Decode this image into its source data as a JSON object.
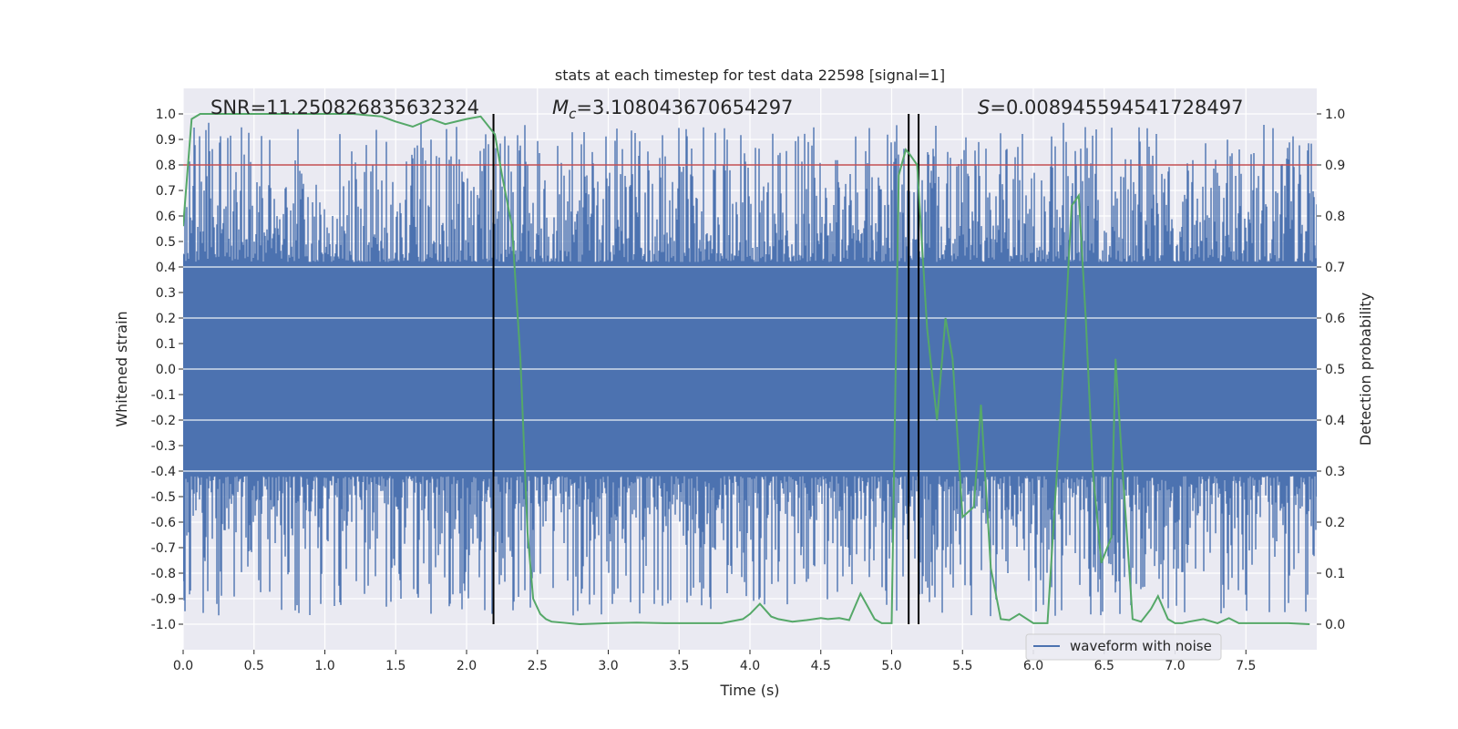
{
  "chart_data": {
    "type": "line",
    "title": "stats at each timestep for test data 22598 [signal=1]",
    "xlabel": "Time (s)",
    "ylabel_left": "Whitened strain",
    "ylabel_right": "Detection probability",
    "xlim": [
      0,
      8
    ],
    "ylim_left": [
      -1.1,
      1.1
    ],
    "ylim_right": [
      -0.05,
      1.05
    ],
    "x_ticks": [
      "0.0",
      "0.5",
      "1.0",
      "1.5",
      "2.0",
      "2.5",
      "3.0",
      "3.5",
      "4.0",
      "4.5",
      "5.0",
      "5.5",
      "6.0",
      "6.5",
      "7.0",
      "7.5"
    ],
    "y_left_ticks": [
      "1.0",
      "0.9",
      "0.8",
      "0.7",
      "0.6",
      "0.5",
      "0.4",
      "0.3",
      "0.2",
      "0.1",
      "0.0",
      "-0.1",
      "-0.2",
      "-0.3",
      "-0.4",
      "-0.5",
      "-0.6",
      "-0.7",
      "-0.8",
      "-0.9",
      "-1.0"
    ],
    "y_right_ticks": [
      "1.0",
      "0.9",
      "0.8",
      "0.7",
      "0.6",
      "0.5",
      "0.4",
      "0.3",
      "0.2",
      "0.1",
      "0.0"
    ],
    "grid": true,
    "annotations": {
      "snr": "SNR=11.250826835632324",
      "mc_symbol": "M",
      "mc_sub": "c",
      "mc_value": "=3.108043670654297",
      "s_symbol": "S",
      "s_value": "=0.008945594541728497"
    },
    "threshold": {
      "y": 0.8,
      "color": "#c44e52"
    },
    "vertical_lines": [
      2.19,
      5.12,
      5.19
    ],
    "legend": {
      "label": "waveform with noise",
      "placement": "lower-right"
    },
    "waveform": {
      "name": "waveform with noise",
      "color": "#4c72b0",
      "core_amplitude": 0.42,
      "max_abs": 1.0
    },
    "series": [
      {
        "color": "#55a868",
        "x": [
          0.0,
          0.06,
          0.12,
          0.3,
          0.6,
          0.9,
          1.2,
          1.4,
          1.5,
          1.62,
          1.75,
          1.85,
          2.0,
          2.1,
          2.2,
          2.25,
          2.32,
          2.38,
          2.43,
          2.47,
          2.52,
          2.56,
          2.6,
          2.8,
          3.0,
          3.2,
          3.4,
          3.6,
          3.8,
          3.95,
          4.0,
          4.07,
          4.15,
          4.2,
          4.3,
          4.4,
          4.5,
          4.55,
          4.63,
          4.7,
          4.78,
          4.83,
          4.88,
          4.93,
          5.0,
          5.05,
          5.1,
          5.13,
          5.18,
          5.25,
          5.32,
          5.38,
          5.43,
          5.5,
          5.58,
          5.63,
          5.7,
          5.77,
          5.83,
          5.9,
          6.0,
          6.05,
          6.1,
          6.2,
          6.27,
          6.32,
          6.37,
          6.42,
          6.48,
          6.55,
          6.58,
          6.63,
          6.7,
          6.76,
          6.83,
          6.88,
          6.95,
          7.0,
          7.05,
          7.1,
          7.2,
          7.3,
          7.38,
          7.45,
          7.6,
          7.8,
          7.95
        ],
        "values": [
          0.78,
          0.99,
          1.0,
          1.0,
          1.0,
          1.0,
          1.0,
          0.995,
          0.985,
          0.975,
          0.99,
          0.98,
          0.99,
          0.995,
          0.96,
          0.88,
          0.78,
          0.52,
          0.18,
          0.05,
          0.02,
          0.01,
          0.005,
          0.0,
          0.002,
          0.003,
          0.002,
          0.002,
          0.002,
          0.01,
          0.02,
          0.04,
          0.015,
          0.01,
          0.005,
          0.008,
          0.012,
          0.01,
          0.012,
          0.008,
          0.06,
          0.035,
          0.01,
          0.002,
          0.002,
          0.88,
          0.93,
          0.92,
          0.9,
          0.58,
          0.4,
          0.6,
          0.52,
          0.21,
          0.23,
          0.43,
          0.11,
          0.01,
          0.008,
          0.02,
          0.002,
          0.002,
          0.002,
          0.45,
          0.82,
          0.84,
          0.6,
          0.3,
          0.12,
          0.17,
          0.52,
          0.3,
          0.01,
          0.005,
          0.03,
          0.055,
          0.01,
          0.002,
          0.002,
          0.005,
          0.01,
          0.002,
          0.012,
          0.002,
          0.002,
          0.002,
          0.0
        ]
      }
    ]
  }
}
